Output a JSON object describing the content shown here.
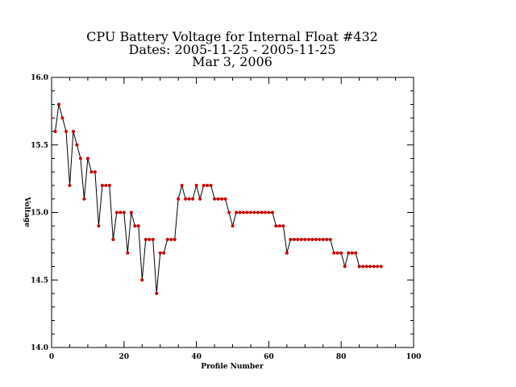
{
  "chart_data": {
    "type": "line",
    "title_lines": [
      "CPU Battery Voltage for Internal Float #432",
      "Dates:  2005-11-25 -  2005-11-25",
      "Mar  3, 2006"
    ],
    "xlabel": "Profile Number",
    "ylabel": "Voltage",
    "xlim": [
      0,
      100
    ],
    "ylim": [
      14.0,
      16.0
    ],
    "x_ticks": [
      0,
      20,
      40,
      60,
      80,
      100
    ],
    "x_tick_labels": [
      "0",
      "20",
      "40",
      "60",
      "80",
      "100"
    ],
    "y_ticks": [
      14.0,
      14.5,
      15.0,
      15.5,
      16.0
    ],
    "y_tick_labels": [
      "14.0",
      "14.5",
      "15.0",
      "15.5",
      "16.0"
    ],
    "grid": false,
    "line_color": "#000000",
    "marker_color": "#cc0000",
    "series": [
      {
        "x": [
          1,
          2,
          3,
          4,
          5,
          6,
          7,
          8,
          9,
          10,
          11,
          12,
          13,
          14,
          15,
          16,
          17,
          18,
          19,
          20,
          21,
          22,
          23,
          24,
          25,
          26,
          27,
          28,
          29,
          30,
          31,
          32,
          33,
          34,
          35,
          36,
          37,
          38,
          39,
          40,
          41,
          42,
          43,
          44,
          45,
          46,
          47,
          48,
          49,
          50,
          51,
          52,
          53,
          54,
          55,
          56,
          57,
          58,
          59,
          60,
          61,
          62,
          63,
          64,
          65,
          66,
          67,
          68,
          69,
          70,
          71,
          72,
          73,
          74,
          75,
          76,
          77,
          78,
          79,
          80,
          81,
          82,
          83,
          84,
          85,
          86,
          87,
          88,
          89,
          90,
          91
        ],
        "y": [
          15.6,
          15.8,
          15.7,
          15.6,
          15.2,
          15.6,
          15.5,
          15.4,
          15.1,
          15.4,
          15.3,
          15.3,
          14.9,
          15.2,
          15.2,
          15.2,
          14.8,
          15.0,
          15.0,
          15.0,
          14.7,
          15.0,
          14.9,
          14.9,
          14.5,
          14.8,
          14.8,
          14.8,
          14.4,
          14.7,
          14.7,
          14.8,
          14.8,
          14.8,
          15.1,
          15.2,
          15.1,
          15.1,
          15.1,
          15.2,
          15.1,
          15.2,
          15.2,
          15.2,
          15.1,
          15.1,
          15.1,
          15.1,
          15.0,
          14.9,
          15.0,
          15.0,
          15.0,
          15.0,
          15.0,
          15.0,
          15.0,
          15.0,
          15.0,
          15.0,
          15.0,
          14.9,
          14.9,
          14.9,
          14.7,
          14.8,
          14.8,
          14.8,
          14.8,
          14.8,
          14.8,
          14.8,
          14.8,
          14.8,
          14.8,
          14.8,
          14.8,
          14.7,
          14.7,
          14.7,
          14.6,
          14.7,
          14.7,
          14.7,
          14.6,
          14.6,
          14.6,
          14.6,
          14.6,
          14.6,
          14.6
        ]
      }
    ]
  }
}
